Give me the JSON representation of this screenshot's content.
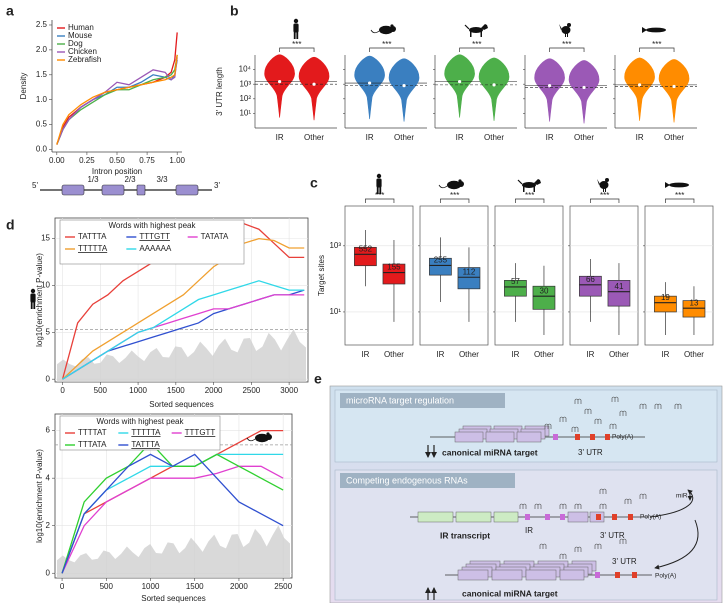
{
  "chart_data": [
    {
      "type": "line",
      "panel": "a",
      "ylabel": "Density",
      "xlabel": "Intron position",
      "legend": "top-left",
      "grid": false,
      "frame": false,
      "xlim": [
        -0.04,
        1.04
      ],
      "ylim": [
        -0.05,
        2.6
      ],
      "xticks": [
        {
          "value": 0,
          "label": "0.00"
        },
        0.25,
        {
          "value": 0.5,
          "label": "0.50"
        },
        0.75,
        {
          "value": 1,
          "label": "1.00"
        }
      ],
      "yticks": [
        {
          "value": 0,
          "label": "0.0"
        },
        0.5,
        {
          "value": 1,
          "label": "1.0"
        },
        1.5,
        {
          "value": 2,
          "label": "2.0"
        },
        2.5
      ],
      "x": [
        0,
        0.05,
        0.1,
        0.2,
        0.3,
        0.4,
        0.5,
        0.6,
        0.7,
        0.8,
        0.9,
        0.95,
        0.98,
        1.0
      ],
      "series": [
        {
          "name": "Human",
          "color": "#e31a1c",
          "values": [
            0.1,
            0.45,
            0.65,
            0.85,
            1.0,
            1.15,
            1.2,
            1.25,
            1.3,
            1.35,
            1.45,
            1.55,
            1.8,
            2.35
          ]
        },
        {
          "name": "Mouse",
          "color": "#3a7fc0",
          "values": [
            0.1,
            0.4,
            0.6,
            0.85,
            1.0,
            1.1,
            1.25,
            1.25,
            1.35,
            1.5,
            1.45,
            1.4,
            1.5,
            1.8
          ]
        },
        {
          "name": "Dog",
          "color": "#4daf4a",
          "values": [
            0.1,
            0.4,
            0.6,
            0.8,
            0.95,
            1.1,
            1.2,
            1.2,
            1.3,
            1.4,
            1.45,
            1.5,
            1.6,
            1.9
          ]
        },
        {
          "name": "Chicken",
          "color": "#9b59b6",
          "values": [
            0.1,
            0.4,
            0.6,
            0.85,
            1.0,
            1.15,
            1.35,
            1.3,
            1.45,
            1.6,
            1.55,
            1.4,
            1.45,
            1.85
          ]
        },
        {
          "name": "Zebrafish",
          "color": "#ff8c00",
          "values": [
            0.1,
            0.5,
            0.7,
            0.9,
            1.05,
            1.15,
            1.2,
            1.25,
            1.3,
            1.35,
            1.4,
            1.45,
            1.5,
            1.9
          ]
        }
      ]
    },
    {
      "type": "violin",
      "panel": "b",
      "ylabel": "3' UTR length",
      "ylog": true,
      "ylim": [
        1,
        100000
      ],
      "yticks": [
        {
          "value": 10,
          "label": "10¹"
        },
        {
          "value": 100,
          "label": "10²"
        },
        {
          "value": 1000,
          "label": "10³"
        },
        {
          "value": 10000,
          "label": "10⁴"
        }
      ],
      "categories": [
        "IR",
        "Other"
      ],
      "groups": [
        {
          "color": "#e31a1c",
          "medians": [
            1500,
            1000
          ],
          "significance": "***"
        },
        {
          "color": "#3a7fc0",
          "medians": [
            1200,
            800
          ],
          "significance": "***"
        },
        {
          "color": "#4daf4a",
          "medians": [
            1500,
            900
          ],
          "significance": "***"
        },
        {
          "color": "#9b59b6",
          "medians": [
            800,
            600
          ],
          "significance": "***"
        },
        {
          "color": "#ff8c00",
          "medians": [
            900,
            700
          ],
          "significance": "***"
        }
      ]
    },
    {
      "type": "box",
      "panel": "c",
      "ylabel": "Target sites",
      "ylog": true,
      "grid": true,
      "ylim": [
        1,
        16000
      ],
      "yticks": [
        {
          "value": 10,
          "label": "10¹"
        },
        {
          "value": 1000,
          "label": "10³"
        }
      ],
      "categories": [
        "IR",
        "Other"
      ],
      "groups": [
        {
          "color": "#e31a1c",
          "median": [
            552,
            155
          ],
          "q1": [
            250,
            70
          ],
          "q3": [
            900,
            280
          ],
          "whislo": [
            60,
            5
          ],
          "whishi": [
            3000,
            1500
          ],
          "significance": "***"
        },
        {
          "color": "#3a7fc0",
          "median": [
            255,
            112
          ],
          "q1": [
            130,
            50
          ],
          "q3": [
            420,
            220
          ],
          "whislo": [
            20,
            5
          ],
          "whishi": [
            1800,
            900
          ],
          "significance": "***"
        },
        {
          "color": "#4daf4a",
          "median": [
            57,
            30
          ],
          "q1": [
            30,
            12
          ],
          "q3": [
            90,
            60
          ],
          "whislo": [
            5,
            2
          ],
          "whishi": [
            300,
            250
          ],
          "significance": "***"
        },
        {
          "color": "#9b59b6",
          "median": [
            66,
            41
          ],
          "q1": [
            30,
            15
          ],
          "q3": [
            120,
            90
          ],
          "whislo": [
            5,
            2
          ],
          "whishi": [
            400,
            300
          ],
          "significance": "***"
        },
        {
          "color": "#ff8c00",
          "median": [
            19,
            13
          ],
          "q1": [
            10,
            7
          ],
          "q3": [
            30,
            22
          ],
          "whislo": [
            2,
            2
          ],
          "whishi": [
            80,
            60
          ],
          "significance": "***"
        }
      ]
    },
    {
      "type": "line",
      "panel": "d",
      "ylabel": "log10(enrichment P-value)",
      "xlabel": "Sorted sequences",
      "legend": "top-left",
      "legend_title": "Words with highest peak",
      "grid": true,
      "frame": true,
      "xlim": [
        -100,
        3250
      ],
      "ylim": [
        -0.3,
        17.2
      ],
      "xticks": [
        0,
        500,
        1000,
        1500,
        2000,
        2500,
        3000
      ],
      "yticks": [
        0,
        5,
        10,
        15
      ],
      "hline": 5.3,
      "x": [
        0,
        200,
        400,
        600,
        800,
        1000,
        1200,
        1400,
        1600,
        1800,
        2000,
        2200,
        2400,
        2600,
        2800,
        3000,
        3200
      ],
      "series": [
        {
          "name": "TATTTA",
          "color": "#e8403a",
          "underline": false,
          "values": [
            0,
            6,
            8,
            9,
            10.5,
            11.5,
            12.5,
            13.5,
            14.5,
            15.5,
            16,
            16.3,
            16.6,
            16,
            14.5,
            13,
            13
          ]
        },
        {
          "name": "TTTGTT",
          "color": "#3050d0",
          "underline": true,
          "values": [
            0,
            1,
            2,
            3,
            3.5,
            4,
            4.5,
            5,
            5.5,
            6,
            7,
            7.5,
            8,
            8.5,
            9,
            9,
            9.5
          ]
        },
        {
          "name": "TATATA",
          "color": "#e040d0",
          "underline": false,
          "values": [
            0,
            1,
            2,
            3,
            4,
            5,
            5.5,
            6,
            6.5,
            7,
            7.5,
            7.5,
            8,
            8.5,
            9,
            9,
            9
          ]
        },
        {
          "name": "TTTTTA",
          "color": "#f0a030",
          "underline": true,
          "values": [
            0,
            1.5,
            3,
            4,
            5,
            6,
            7,
            8,
            9,
            10.5,
            12,
            13,
            14.5,
            15,
            14.8,
            14,
            14
          ]
        },
        {
          "name": "AAAAAA",
          "color": "#30d8e8",
          "underline": false,
          "values": [
            0,
            1,
            2,
            3,
            4,
            5,
            5.5,
            6.5,
            7.5,
            8.5,
            9,
            9.5,
            10,
            10.5,
            10,
            9.5,
            9.5
          ]
        }
      ]
    },
    {
      "type": "line",
      "legend": "top-left",
      "legend_title": "Words with highest peak",
      "ylabel": "log10(enrichment P-value)",
      "xlabel": "Sorted sequences",
      "grid": true,
      "frame": true,
      "xlim": [
        -80,
        2600
      ],
      "ylim": [
        -0.2,
        6.7
      ],
      "xticks": [
        0,
        500,
        1000,
        1500,
        2000,
        2500
      ],
      "yticks": [
        0,
        2,
        4,
        6
      ],
      "hline": 5.4,
      "x": [
        0,
        250,
        500,
        750,
        1000,
        1250,
        1500,
        1750,
        2000,
        2250,
        2500
      ],
      "series": [
        {
          "name": "TTTTAT",
          "color": "#e8403a",
          "underline": false,
          "values": [
            0,
            2.5,
            3,
            3.5,
            4,
            4.5,
            4.5,
            5,
            5.5,
            6,
            6
          ]
        },
        {
          "name": "TTTTTA",
          "color": "#30d8e8",
          "underline": true,
          "values": [
            0,
            2.5,
            3.5,
            4,
            4.5,
            4.5,
            4.5,
            5,
            5,
            5,
            5
          ]
        },
        {
          "name": "TTTGTT",
          "color": "#e040d0",
          "underline": true,
          "values": [
            0,
            2,
            3,
            3.5,
            4,
            4,
            4,
            4.2,
            4.5,
            4.5,
            4
          ]
        },
        {
          "name": "TTTATA",
          "color": "#30d030",
          "underline": false,
          "values": [
            0,
            3,
            4,
            4.5,
            5.5,
            4.5,
            4.5,
            5,
            4.5,
            4,
            3.5
          ]
        },
        {
          "name": "TATTTA",
          "color": "#3050d0",
          "underline": true,
          "values": [
            0,
            2.5,
            3.5,
            4.5,
            5,
            4.5,
            5,
            4,
            3,
            2.5,
            2
          ]
        }
      ]
    }
  ],
  "intron_diagram": {
    "labels": [
      "5'",
      "1/3",
      "2/3",
      "3/3",
      "3'"
    ]
  },
  "diagram": {
    "panel": "e",
    "regulation": {
      "title": "microRNA target regulation",
      "target_label": "canonical miRNA target",
      "utr": "3' UTR",
      "polya": "Poly(A)"
    },
    "cerna": {
      "title": "Competing endogenous RNAs",
      "ir_transcript": "IR transcript",
      "ir": "IR",
      "utr": "3' UTR",
      "polya": "Poly(A)",
      "mir": "miR",
      "target_utr": "3' UTR",
      "target_polya": "Poly(A)",
      "target_label": "canonical miRNA target"
    }
  }
}
